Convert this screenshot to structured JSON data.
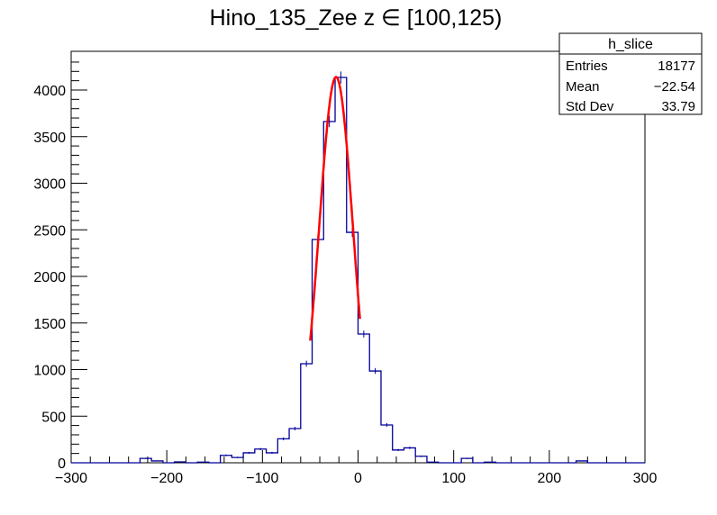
{
  "chart_data": {
    "type": "bar",
    "title": "Hino_135_Zee z  ∈ [100,125)",
    "xlabel": "",
    "ylabel": "",
    "xlim": [
      -300,
      300
    ],
    "ylim": [
      0,
      4370
    ],
    "bin_width": 12,
    "x_ticks": [
      "−300",
      "−200",
      "−100",
      "0",
      "100",
      "200",
      "300"
    ],
    "x_tick_values": [
      -300,
      -200,
      -100,
      0,
      100,
      200,
      300
    ],
    "y_ticks": [
      "0",
      "500",
      "1000",
      "1500",
      "2000",
      "2500",
      "3000",
      "3500",
      "4000"
    ],
    "y_tick_values": [
      0,
      500,
      1000,
      1500,
      2000,
      2500,
      3000,
      3500,
      4000
    ],
    "bins": [
      {
        "x": -228,
        "y": 47
      },
      {
        "x": -216,
        "y": 20
      },
      {
        "x": -192,
        "y": 10
      },
      {
        "x": -168,
        "y": 7
      },
      {
        "x": -144,
        "y": 80
      },
      {
        "x": -132,
        "y": 57
      },
      {
        "x": -120,
        "y": 107
      },
      {
        "x": -108,
        "y": 147
      },
      {
        "x": -96,
        "y": 107
      },
      {
        "x": -84,
        "y": 257
      },
      {
        "x": -72,
        "y": 367
      },
      {
        "x": -60,
        "y": 1063
      },
      {
        "x": -48,
        "y": 2396
      },
      {
        "x": -36,
        "y": 3662
      },
      {
        "x": -24,
        "y": 4135
      },
      {
        "x": -12,
        "y": 2473
      },
      {
        "x": 0,
        "y": 1382
      },
      {
        "x": 12,
        "y": 985
      },
      {
        "x": 24,
        "y": 406
      },
      {
        "x": 36,
        "y": 137
      },
      {
        "x": 48,
        "y": 160
      },
      {
        "x": 60,
        "y": 70
      },
      {
        "x": 72,
        "y": 7
      },
      {
        "x": 108,
        "y": 47
      },
      {
        "x": 132,
        "y": 7
      },
      {
        "x": 228,
        "y": 20
      }
    ],
    "fit": {
      "type": "gaussian",
      "constant": 4140,
      "mean": -23,
      "sigma": 17.8,
      "range": [
        -50,
        2
      ],
      "color": "#ff0000"
    },
    "hist_color": "#000099",
    "legend": {
      "title": "h_slice",
      "placement": "top-right",
      "rows": [
        {
          "label": "Entries",
          "value": "18177"
        },
        {
          "label": "Mean",
          "value": "−22.54"
        },
        {
          "label": "Std Dev",
          "value": "33.79"
        }
      ]
    }
  }
}
